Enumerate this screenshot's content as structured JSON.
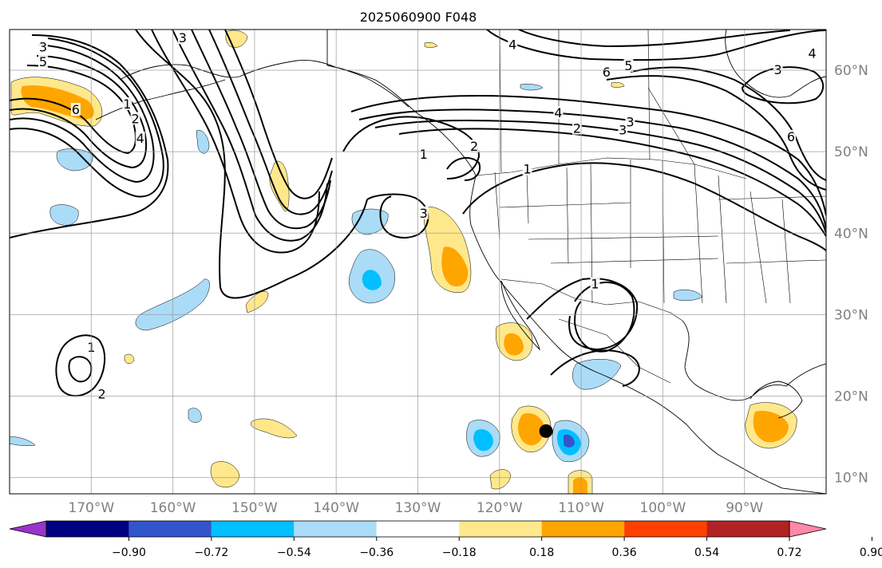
{
  "title": "2025060900 F048",
  "map": {
    "lon_range": [
      -180,
      -80
    ],
    "lat_range": [
      8,
      65
    ],
    "lon_ticks": [
      {
        "lon": -170,
        "label": "170°W"
      },
      {
        "lon": -160,
        "label": "160°W"
      },
      {
        "lon": -150,
        "label": "150°W"
      },
      {
        "lon": -140,
        "label": "140°W"
      },
      {
        "lon": -130,
        "label": "130°W"
      },
      {
        "lon": -120,
        "label": "120°W"
      },
      {
        "lon": -110,
        "label": "110°W"
      },
      {
        "lon": -100,
        "label": "100°W"
      },
      {
        "lon": -90,
        "label": "90°W"
      }
    ],
    "lat_ticks": [
      {
        "lat": 60,
        "label": "60°N"
      },
      {
        "lat": 50,
        "label": "50°N"
      },
      {
        "lat": 40,
        "label": "40°N"
      },
      {
        "lat": 30,
        "label": "30°N"
      },
      {
        "lat": 20,
        "label": "20°N"
      },
      {
        "lat": 10,
        "label": "10°N"
      }
    ],
    "grid": true,
    "storm_marker": {
      "lon": -114.3,
      "lat": 15.7
    }
  },
  "colorbar": {
    "ticks": [
      "−0.90",
      "−0.72",
      "−0.54",
      "−0.36",
      "−0.18",
      "0.18",
      "0.36",
      "0.54",
      "0.72",
      "0.90"
    ],
    "colors": [
      "#9933cc",
      "#000080",
      "#3355cc",
      "#00bfff",
      "#aadcf8",
      "#ffffff",
      "#ffe88c",
      "#ffa500",
      "#ff4000",
      "#b22222",
      "#ff88aa"
    ],
    "extend": "both"
  },
  "contour_labels": [
    {
      "text": "3",
      "lon": -175.9,
      "lat": 62.8
    },
    {
      "text": "5",
      "lon": -175.9,
      "lat": 61.0
    },
    {
      "text": "6",
      "lon": -171.9,
      "lat": 55.1
    },
    {
      "text": "1",
      "lon": -165.6,
      "lat": 55.8
    },
    {
      "text": "2",
      "lon": -164.6,
      "lat": 54.0
    },
    {
      "text": "4",
      "lon": -164.0,
      "lat": 51.6
    },
    {
      "text": "3",
      "lon": -158.8,
      "lat": 63.9
    },
    {
      "text": "3",
      "lon": -129.3,
      "lat": 42.4
    },
    {
      "text": "1",
      "lon": -129.3,
      "lat": 49.6
    },
    {
      "text": "2",
      "lon": -123.1,
      "lat": 50.6
    },
    {
      "text": "1",
      "lon": -116.6,
      "lat": 47.8
    },
    {
      "text": "4",
      "lon": -118.4,
      "lat": 63.1
    },
    {
      "text": "4",
      "lon": -112.8,
      "lat": 54.7
    },
    {
      "text": "2",
      "lon": -110.5,
      "lat": 52.8
    },
    {
      "text": "3",
      "lon": -104.9,
      "lat": 52.6
    },
    {
      "text": "6",
      "lon": -106.9,
      "lat": 59.7
    },
    {
      "text": "5",
      "lon": -104.2,
      "lat": 60.5
    },
    {
      "text": "3",
      "lon": -104.0,
      "lat": 53.6
    },
    {
      "text": "6",
      "lon": -84.3,
      "lat": 51.8
    },
    {
      "text": "4",
      "lon": -81.7,
      "lat": 62.0
    },
    {
      "text": "3",
      "lon": -85.9,
      "lat": 60.0
    },
    {
      "text": "1",
      "lon": -108.3,
      "lat": 33.7
    },
    {
      "text": "1",
      "lon": -170.0,
      "lat": 25.9
    },
    {
      "text": "2",
      "lon": -168.7,
      "lat": 20.2
    }
  ]
}
